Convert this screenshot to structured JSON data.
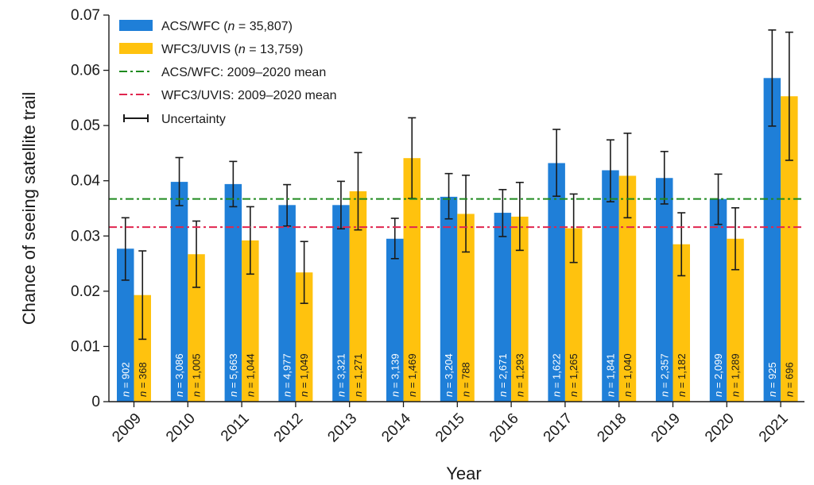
{
  "chart_data": {
    "type": "bar",
    "xlabel": "Year",
    "ylabel": "Chance of seeing satellite trail",
    "ylim": [
      0,
      0.07
    ],
    "yticks": [
      "0",
      "0.01",
      "0.02",
      "0.03",
      "0.04",
      "0.05",
      "0.06",
      "0.07"
    ],
    "categories": [
      "2009",
      "2010",
      "2011",
      "2012",
      "2013",
      "2014",
      "2015",
      "2016",
      "2017",
      "2018",
      "2019",
      "2020",
      "2021"
    ],
    "series": [
      {
        "name": "ACS/WFC",
        "legend_label": "ACS/WFC (n = 35,807)",
        "color": "#1f7fd8",
        "values": [
          0.0277,
          0.0398,
          0.0394,
          0.0356,
          0.0356,
          0.0295,
          0.0371,
          0.0342,
          0.0432,
          0.0419,
          0.0405,
          0.0367,
          0.0586
        ],
        "err_low": [
          0.022,
          0.0355,
          0.0353,
          0.0318,
          0.0313,
          0.0259,
          0.0331,
          0.0299,
          0.0372,
          0.0362,
          0.0358,
          0.0321,
          0.0499
        ],
        "err_high": [
          0.0333,
          0.0442,
          0.0435,
          0.0393,
          0.0399,
          0.0332,
          0.0413,
          0.0384,
          0.0493,
          0.0474,
          0.0453,
          0.0412,
          0.0673
        ],
        "n": [
          "902",
          "3,086",
          "5,663",
          "4,977",
          "3,321",
          "3,139",
          "3,204",
          "2,671",
          "1,622",
          "1,841",
          "2,357",
          "2,099",
          "925"
        ]
      },
      {
        "name": "WFC3/UVIS",
        "legend_label": "WFC3/UVIS (n = 13,759)",
        "color": "#ffc20e",
        "values": [
          0.0193,
          0.0267,
          0.0292,
          0.0234,
          0.0381,
          0.0441,
          0.034,
          0.0335,
          0.0314,
          0.0409,
          0.0285,
          0.0295,
          0.0553
        ],
        "err_low": [
          0.0113,
          0.0207,
          0.0231,
          0.0178,
          0.0311,
          0.0368,
          0.0271,
          0.0274,
          0.0252,
          0.0333,
          0.0228,
          0.0239,
          0.0437
        ],
        "err_high": [
          0.0273,
          0.0327,
          0.0353,
          0.029,
          0.0451,
          0.0514,
          0.041,
          0.0397,
          0.0376,
          0.0486,
          0.0342,
          0.0351,
          0.0669
        ],
        "n": [
          "368",
          "1,005",
          "1,044",
          "1,049",
          "1,271",
          "1,469",
          "788",
          "1,293",
          "1,265",
          "1,040",
          "1,182",
          "1,289",
          "696"
        ]
      }
    ],
    "reference_lines": [
      {
        "label": "ACS/WFC: 2009–2020 mean",
        "value": 0.0367,
        "color": "#1f8a1f"
      },
      {
        "label": "WFC3/UVIS: 2009–2020 mean",
        "value": 0.0316,
        "color": "#e0264f"
      }
    ],
    "uncertainty_label": "Uncertainty",
    "legend_position": "top-left"
  }
}
